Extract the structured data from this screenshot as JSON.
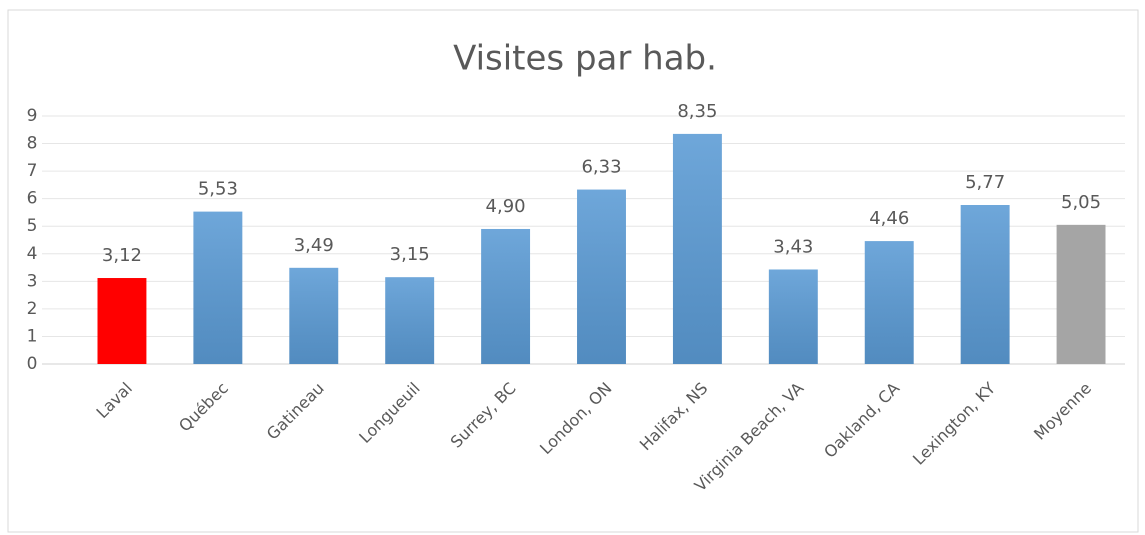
{
  "chart_data": {
    "type": "bar",
    "title": "Visites par hab.",
    "categories": [
      "Laval",
      "Québec",
      "Gatineau",
      "Longueuil",
      "Surrey, BC",
      "London, ON",
      "Halifax, NS",
      "Virginia Beach, VA",
      "Oakland, CA",
      "Lexington, KY",
      "Moyenne"
    ],
    "values": [
      3.12,
      5.53,
      3.49,
      3.15,
      4.9,
      6.33,
      8.35,
      3.43,
      4.46,
      5.77,
      5.05
    ],
    "value_labels": [
      "3,12",
      "5,53",
      "3,49",
      "3,15",
      "4,90",
      "6,33",
      "8,35",
      "3,43",
      "4,46",
      "5,77",
      "5,05"
    ],
    "colors": [
      "#ff0000",
      "#5b9bd5",
      "#5b9bd5",
      "#5b9bd5",
      "#5b9bd5",
      "#5b9bd5",
      "#5b9bd5",
      "#5b9bd5",
      "#5b9bd5",
      "#5b9bd5",
      "#a5a5a5"
    ],
    "ylim": [
      0,
      9
    ],
    "yticks": [
      0,
      1,
      2,
      3,
      4,
      5,
      6,
      7,
      8,
      9
    ],
    "grid": true
  }
}
